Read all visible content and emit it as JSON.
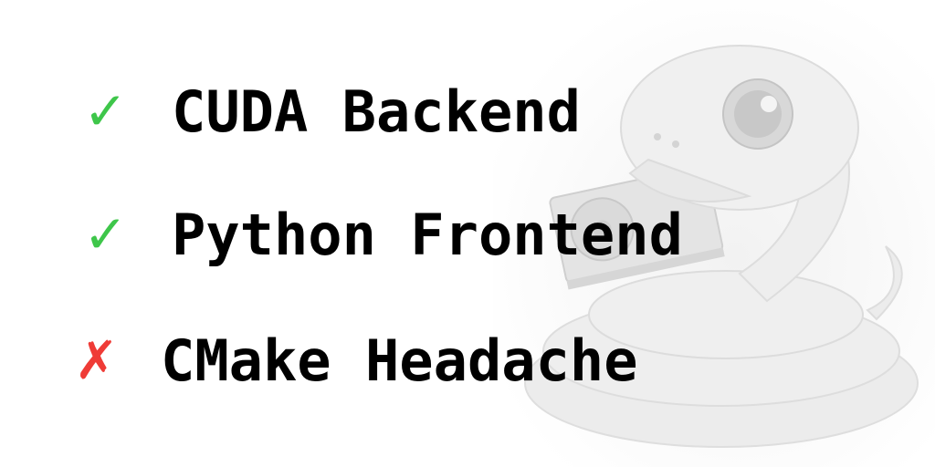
{
  "items": [
    {
      "label": "CUDA Backend",
      "mark": "✓",
      "color": "#3ec64a"
    },
    {
      "label": "Python Frontend",
      "mark": "✓",
      "color": "#3ec64a"
    },
    {
      "label": "CMake Headache",
      "mark": "✗",
      "color": "#ef3b36"
    }
  ],
  "illustration": {
    "icon": "python-snake-holding-gpu-icon"
  }
}
